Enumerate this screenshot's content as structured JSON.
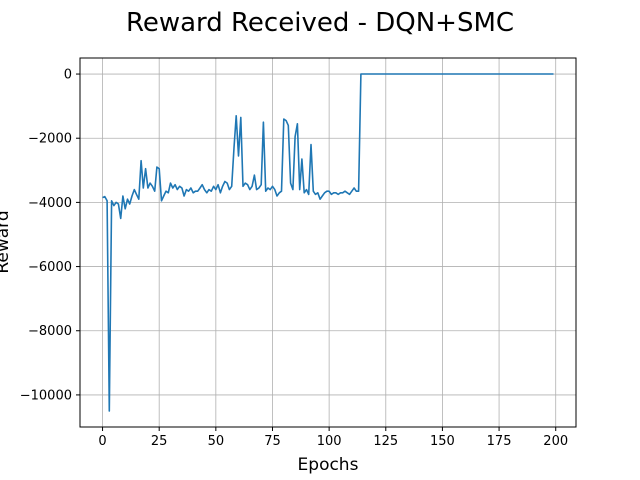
{
  "chart_data": {
    "type": "line",
    "title": "Reward Received - DQN+SMC",
    "xlabel": "Epochs",
    "ylabel": "Reward",
    "xlim": [
      -9.95,
      208.95
    ],
    "ylim": [
      -11000,
      500
    ],
    "x_ticks": [
      0,
      25,
      50,
      75,
      100,
      125,
      150,
      175,
      200
    ],
    "y_ticks": [
      0,
      -2000,
      -4000,
      -6000,
      -8000,
      -10000
    ],
    "grid": true,
    "legend": "none",
    "series": [
      {
        "color": "#1f77b4",
        "x": [
          0,
          1,
          2,
          3,
          4,
          5,
          6,
          7,
          8,
          9,
          10,
          11,
          12,
          13,
          14,
          15,
          16,
          17,
          18,
          19,
          20,
          21,
          22,
          23,
          24,
          25,
          26,
          27,
          28,
          29,
          30,
          31,
          32,
          33,
          34,
          35,
          36,
          37,
          38,
          39,
          40,
          41,
          42,
          43,
          44,
          45,
          46,
          47,
          48,
          49,
          50,
          51,
          52,
          53,
          54,
          55,
          56,
          57,
          58,
          59,
          60,
          61,
          62,
          63,
          64,
          65,
          66,
          67,
          68,
          69,
          70,
          71,
          72,
          73,
          74,
          75,
          76,
          77,
          78,
          79,
          80,
          81,
          82,
          83,
          84,
          85,
          86,
          87,
          88,
          89,
          90,
          91,
          92,
          93,
          94,
          95,
          96,
          97,
          98,
          99,
          100,
          101,
          102,
          103,
          104,
          105,
          106,
          107,
          108,
          109,
          110,
          111,
          112,
          113,
          114,
          115,
          116,
          117,
          118,
          119,
          120,
          125,
          130,
          135,
          140,
          145,
          150,
          155,
          160,
          165,
          170,
          175,
          180,
          185,
          190,
          195,
          199
        ],
        "y": [
          -3850,
          -3820,
          -3950,
          -10500,
          -3950,
          -4100,
          -4000,
          -4050,
          -4500,
          -3800,
          -4200,
          -3900,
          -4050,
          -3800,
          -3600,
          -3750,
          -3900,
          -2700,
          -3550,
          -2950,
          -3550,
          -3400,
          -3500,
          -3650,
          -2900,
          -2950,
          -3950,
          -3800,
          -3650,
          -3700,
          -3400,
          -3550,
          -3450,
          -3600,
          -3500,
          -3550,
          -3800,
          -3600,
          -3650,
          -3550,
          -3700,
          -3650,
          -3650,
          -3550,
          -3450,
          -3600,
          -3700,
          -3600,
          -3650,
          -3500,
          -3600,
          -3450,
          -3700,
          -3500,
          -3350,
          -3400,
          -3600,
          -3500,
          -2300,
          -1300,
          -2550,
          -1350,
          -3500,
          -3400,
          -3450,
          -3600,
          -3500,
          -3150,
          -3600,
          -3550,
          -3450,
          -1500,
          -3650,
          -3550,
          -3600,
          -3500,
          -3600,
          -3800,
          -3700,
          -3650,
          -1400,
          -1450,
          -1600,
          -3400,
          -3600,
          -1950,
          -1550,
          -3600,
          -2650,
          -3700,
          -3600,
          -3750,
          -2200,
          -3650,
          -3750,
          -3700,
          -3900,
          -3800,
          -3700,
          -3650,
          -3650,
          -3750,
          -3700,
          -3700,
          -3750,
          -3700,
          -3700,
          -3650,
          -3700,
          -3750,
          -3650,
          -3550,
          -3650,
          -3650,
          0,
          0,
          0,
          0,
          0,
          0,
          0,
          0,
          0,
          0,
          0,
          0,
          0,
          0,
          0,
          0,
          0,
          0,
          0,
          0,
          0,
          0,
          0
        ]
      }
    ]
  }
}
